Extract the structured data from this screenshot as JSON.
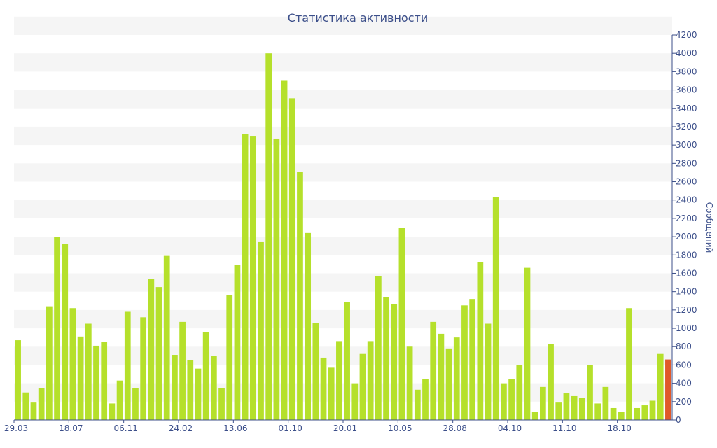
{
  "chart_data": {
    "type": "bar",
    "title": "Статистика активности",
    "ylabel": "Сообщений",
    "xlabel": "",
    "ylim": [
      0,
      4200
    ],
    "yticks": [
      0,
      200,
      400,
      600,
      800,
      1000,
      1200,
      1400,
      1600,
      1800,
      2000,
      2200,
      2400,
      2600,
      2800,
      3000,
      3200,
      3400,
      3600,
      3800,
      4000,
      4200
    ],
    "y_axis_side": "right",
    "x_tick_labels": [
      {
        "index": 0,
        "label": "29.03"
      },
      {
        "index": 7,
        "label": "18.07"
      },
      {
        "index": 14,
        "label": "06.11"
      },
      {
        "index": 21,
        "label": "24.02"
      },
      {
        "index": 28,
        "label": "13.06"
      },
      {
        "index": 35,
        "label": "01.10"
      },
      {
        "index": 42,
        "label": "20.01"
      },
      {
        "index": 49,
        "label": "10.05"
      },
      {
        "index": 56,
        "label": "28.08"
      },
      {
        "index": 63,
        "label": "04.10"
      },
      {
        "index": 70,
        "label": "11.10"
      },
      {
        "index": 77,
        "label": "18.10"
      }
    ],
    "grid_bands": true,
    "colors": {
      "bar": "#b5e02b",
      "highlight": "#e0592a",
      "text": "#3c4f8a",
      "band": "#f5f5f5"
    },
    "highlight_index": 83,
    "values": [
      870,
      300,
      190,
      350,
      1240,
      2000,
      1920,
      1220,
      910,
      1050,
      810,
      850,
      180,
      430,
      1180,
      350,
      1120,
      1540,
      1450,
      1790,
      710,
      1070,
      650,
      560,
      960,
      700,
      350,
      1360,
      1690,
      3120,
      3100,
      1940,
      4000,
      3070,
      3700,
      3510,
      2710,
      2040,
      1060,
      680,
      570,
      860,
      1290,
      400,
      720,
      860,
      1570,
      1340,
      1260,
      2100,
      800,
      330,
      450,
      1070,
      940,
      780,
      900,
      1250,
      1320,
      1720,
      1050,
      2430,
      400,
      450,
      600,
      1660,
      90,
      360,
      830,
      190,
      290,
      260,
      240,
      600,
      180,
      360,
      130,
      90,
      1220,
      130,
      160,
      210,
      720,
      660
    ]
  }
}
